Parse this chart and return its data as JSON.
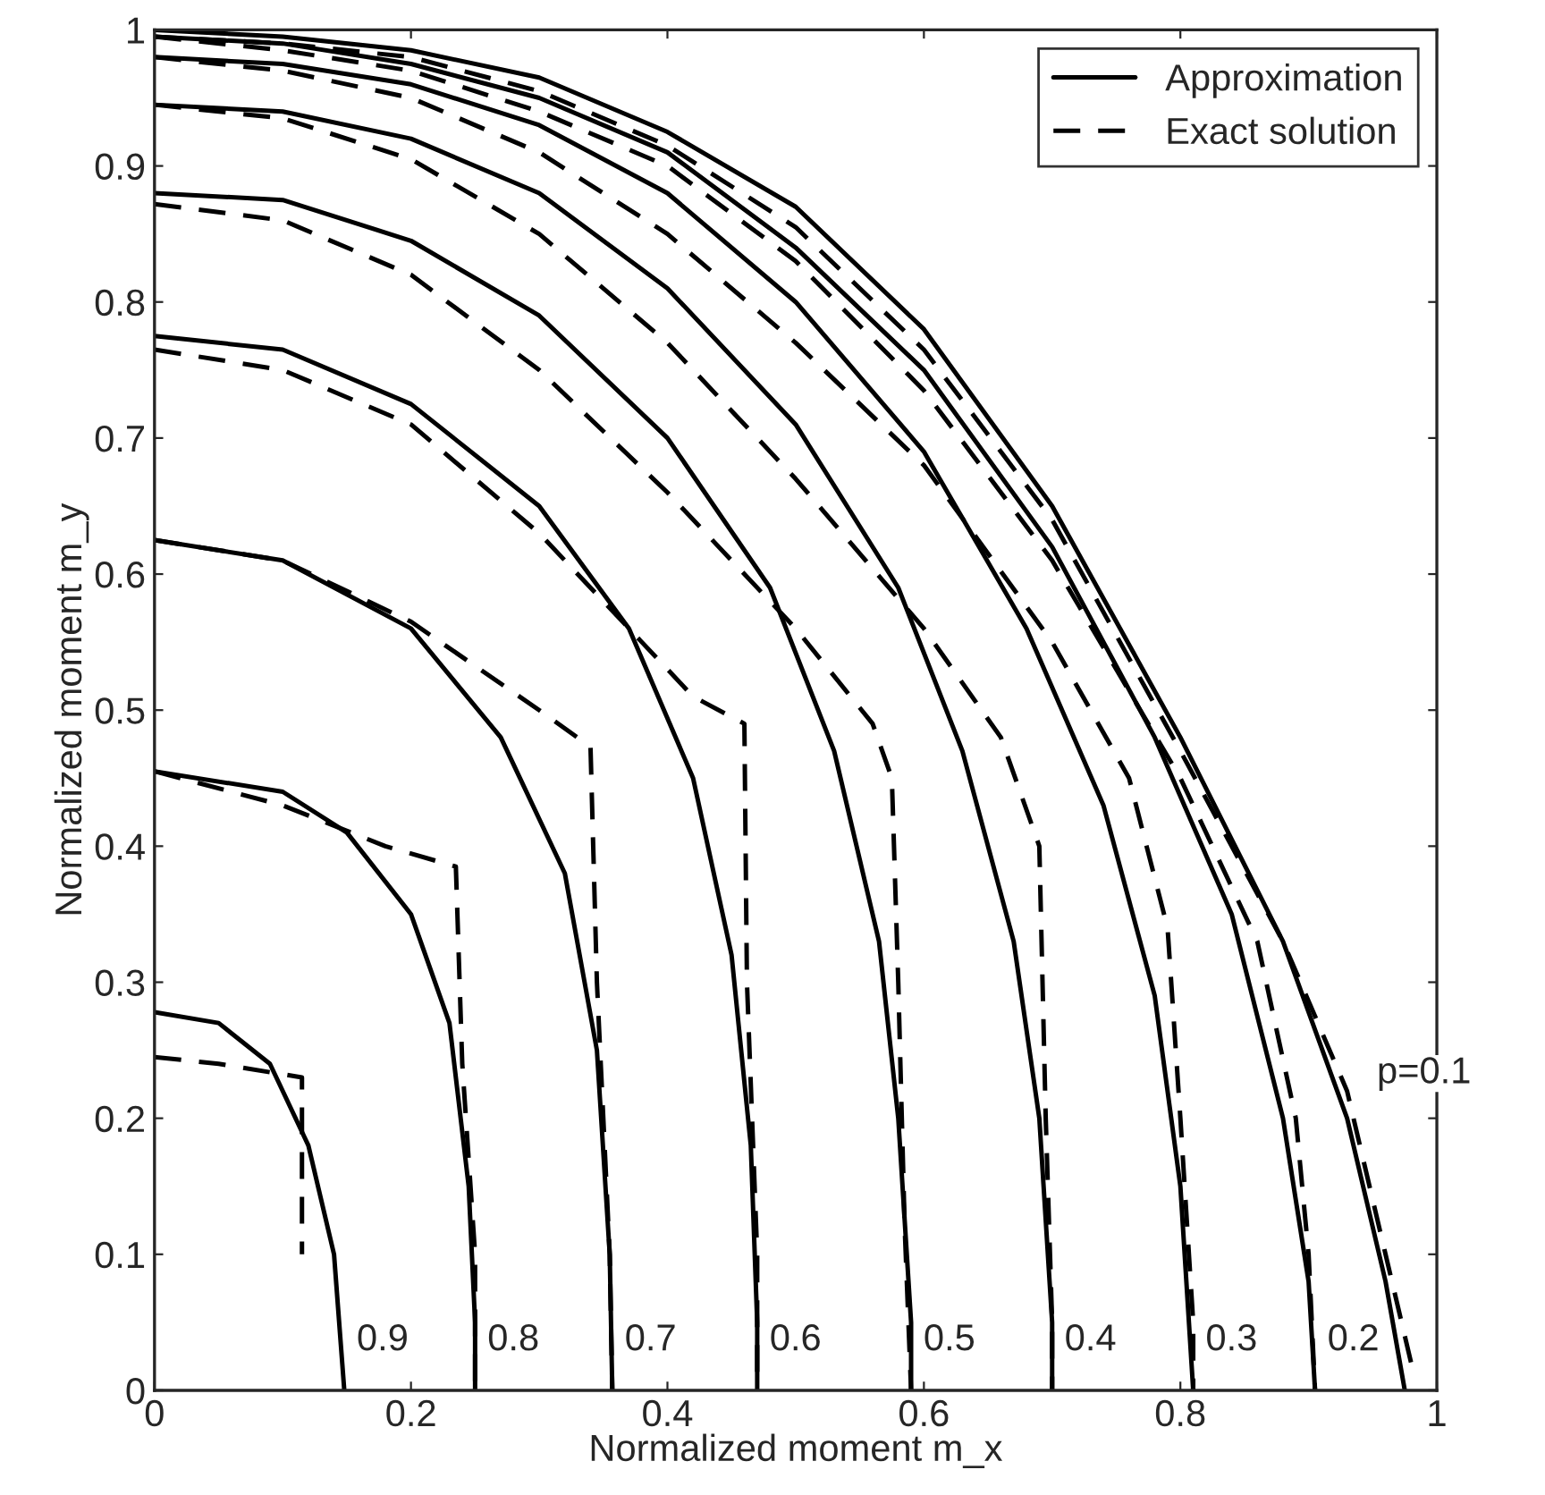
{
  "chart_data": {
    "type": "line",
    "xlabel": "Normalized moment m_x",
    "ylabel": "Normalized moment m_y",
    "xlim": [
      0,
      1
    ],
    "ylim": [
      0,
      1
    ],
    "xticks": [
      0,
      0.2,
      0.4,
      0.6,
      0.8,
      1
    ],
    "yticks": [
      0,
      0.1,
      0.2,
      0.3,
      0.4,
      0.5,
      0.6,
      0.7,
      0.8,
      0.9,
      1
    ],
    "grid": false,
    "legend": "top right",
    "marker": "none",
    "series": [
      {
        "name": "Approximation",
        "color": "#000000",
        "line_style": "solid",
        "x": [
          0,
          0.1,
          0.2,
          0.3,
          0.4,
          0.5,
          0.6,
          0.7,
          0.8,
          0.88,
          0.93,
          0.96,
          0.975
        ],
        "values": [
          1.0,
          0.995,
          0.985,
          0.965,
          0.925,
          0.87,
          0.78,
          0.65,
          0.48,
          0.33,
          0.2,
          0.08,
          0
        ]
      },
      {
        "name": "Exact solution",
        "color": "#000000",
        "line_style": "dashed",
        "x": [
          0,
          0.1,
          0.2,
          0.3,
          0.4,
          0.5,
          0.6,
          0.7,
          0.8,
          0.88,
          0.93,
          0.96,
          0.98
        ],
        "values": [
          0.995,
          0.99,
          0.98,
          0.955,
          0.915,
          0.855,
          0.765,
          0.64,
          0.47,
          0.33,
          0.22,
          0.1,
          0.02
        ]
      },
      {
        "color": "#000000",
        "line_style": "solid",
        "x": [
          0,
          0.1,
          0.2,
          0.3,
          0.4,
          0.5,
          0.6,
          0.7,
          0.78,
          0.84,
          0.88,
          0.9,
          0.905
        ],
        "values": [
          0.995,
          0.99,
          0.975,
          0.95,
          0.91,
          0.84,
          0.75,
          0.62,
          0.48,
          0.35,
          0.2,
          0.08,
          0
        ]
      },
      {
        "color": "#000000",
        "line_style": "dashed",
        "x": [
          0,
          0.1,
          0.2,
          0.3,
          0.4,
          0.5,
          0.6,
          0.7,
          0.8,
          0.86,
          0.89,
          0.9,
          0.905
        ],
        "values": [
          0.995,
          0.985,
          0.97,
          0.94,
          0.9,
          0.83,
          0.735,
          0.61,
          0.45,
          0.33,
          0.2,
          0.1,
          0
        ]
      },
      {
        "color": "#000000",
        "line_style": "solid",
        "x": [
          0,
          0.1,
          0.2,
          0.3,
          0.4,
          0.5,
          0.6,
          0.68,
          0.74,
          0.78,
          0.8,
          0.81
        ],
        "values": [
          0.98,
          0.975,
          0.96,
          0.93,
          0.88,
          0.8,
          0.69,
          0.56,
          0.43,
          0.29,
          0.15,
          0
        ]
      },
      {
        "color": "#000000",
        "line_style": "dashed",
        "x": [
          0,
          0.1,
          0.2,
          0.3,
          0.4,
          0.5,
          0.6,
          0.7,
          0.76,
          0.79,
          0.8,
          0.81,
          0.81
        ],
        "values": [
          0.98,
          0.97,
          0.95,
          0.91,
          0.85,
          0.77,
          0.68,
          0.55,
          0.45,
          0.34,
          0.2,
          0.05,
          0
        ]
      },
      {
        "color": "#000000",
        "line_style": "solid",
        "x": [
          0,
          0.1,
          0.2,
          0.3,
          0.4,
          0.5,
          0.58,
          0.63,
          0.67,
          0.69,
          0.7,
          0.7
        ],
        "values": [
          0.945,
          0.94,
          0.92,
          0.88,
          0.81,
          0.71,
          0.59,
          0.47,
          0.33,
          0.2,
          0.05,
          0
        ]
      },
      {
        "color": "#000000",
        "line_style": "dashed",
        "x": [
          0,
          0.1,
          0.2,
          0.3,
          0.4,
          0.5,
          0.6,
          0.66,
          0.69,
          0.695,
          0.7,
          0.7
        ],
        "values": [
          0.945,
          0.935,
          0.905,
          0.85,
          0.77,
          0.67,
          0.56,
          0.48,
          0.4,
          0.2,
          0.05,
          0
        ]
      },
      {
        "color": "#000000",
        "line_style": "solid",
        "x": [
          0,
          0.1,
          0.2,
          0.3,
          0.4,
          0.48,
          0.53,
          0.565,
          0.58,
          0.59,
          0.59
        ],
        "values": [
          0.88,
          0.875,
          0.845,
          0.79,
          0.7,
          0.59,
          0.47,
          0.33,
          0.2,
          0.05,
          0
        ]
      },
      {
        "color": "#000000",
        "line_style": "dashed",
        "x": [
          0,
          0.1,
          0.2,
          0.3,
          0.4,
          0.5,
          0.56,
          0.575,
          0.58,
          0.585,
          0.59
        ],
        "values": [
          0.872,
          0.86,
          0.82,
          0.75,
          0.66,
          0.56,
          0.49,
          0.45,
          0.3,
          0.12,
          0
        ]
      },
      {
        "color": "#000000",
        "line_style": "solid",
        "x": [
          0,
          0.1,
          0.2,
          0.3,
          0.37,
          0.42,
          0.45,
          0.465,
          0.47,
          0.47
        ],
        "values": [
          0.775,
          0.765,
          0.725,
          0.65,
          0.56,
          0.45,
          0.32,
          0.18,
          0.05,
          0
        ]
      },
      {
        "color": "#000000",
        "line_style": "dashed",
        "x": [
          0,
          0.1,
          0.2,
          0.3,
          0.38,
          0.42,
          0.46,
          0.462,
          0.47,
          0.47
        ],
        "values": [
          0.765,
          0.75,
          0.71,
          0.63,
          0.55,
          0.51,
          0.49,
          0.3,
          0.1,
          0
        ]
      },
      {
        "color": "#000000",
        "line_style": "solid",
        "x": [
          0,
          0.1,
          0.2,
          0.27,
          0.32,
          0.345,
          0.355,
          0.357
        ],
        "values": [
          0.625,
          0.61,
          0.56,
          0.48,
          0.38,
          0.25,
          0.1,
          0
        ]
      },
      {
        "color": "#000000",
        "line_style": "dashed",
        "x": [
          0,
          0.1,
          0.2,
          0.3,
          0.34,
          0.345,
          0.355,
          0.357
        ],
        "values": [
          0.625,
          0.61,
          0.565,
          0.5,
          0.473,
          0.3,
          0.1,
          0
        ]
      },
      {
        "color": "#000000",
        "line_style": "solid",
        "x": [
          0,
          0.1,
          0.15,
          0.2,
          0.23,
          0.245,
          0.25,
          0.25
        ],
        "values": [
          0.455,
          0.44,
          0.41,
          0.35,
          0.27,
          0.15,
          0.05,
          0
        ]
      },
      {
        "color": "#000000",
        "line_style": "dashed",
        "x": [
          0,
          0.1,
          0.18,
          0.235,
          0.24,
          0.25,
          0.25
        ],
        "values": [
          0.455,
          0.43,
          0.4,
          0.385,
          0.24,
          0.1,
          0
        ]
      },
      {
        "color": "#000000",
        "line_style": "solid",
        "x": [
          0,
          0.05,
          0.09,
          0.12,
          0.14,
          0.148
        ],
        "values": [
          0.278,
          0.27,
          0.24,
          0.18,
          0.1,
          0
        ]
      },
      {
        "color": "#000000",
        "line_style": "dashed",
        "x": [
          0,
          0.05,
          0.115,
          0.115
        ],
        "values": [
          0.245,
          0.24,
          0.23,
          0.1
        ]
      }
    ],
    "annotations": [
      {
        "text": "p=0.1",
        "x": 0.93,
        "y": 0.2
      },
      {
        "text": "0.2",
        "x": 0.905,
        "y": 0
      },
      {
        "text": "0.3",
        "x": 0.81,
        "y": 0
      },
      {
        "text": "0.4",
        "x": 0.7,
        "y": 0
      },
      {
        "text": "0.5",
        "x": 0.59,
        "y": 0
      },
      {
        "text": "0.6",
        "x": 0.47,
        "y": 0
      },
      {
        "text": "0.7",
        "x": 0.357,
        "y": 0
      },
      {
        "text": "0.8",
        "x": 0.25,
        "y": 0
      },
      {
        "text": "0.9",
        "x": 0.148,
        "y": 0
      }
    ]
  }
}
